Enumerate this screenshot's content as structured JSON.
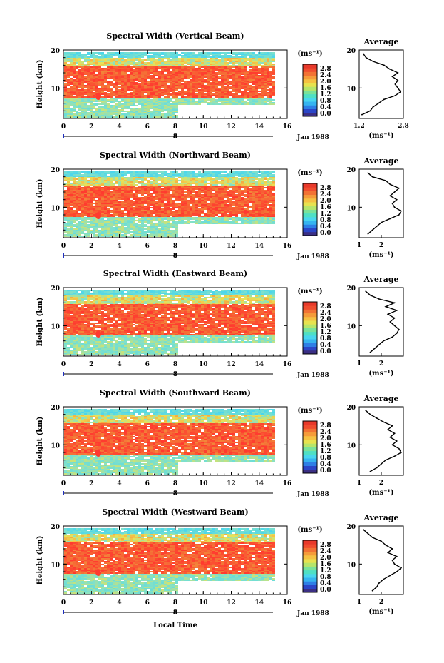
{
  "figure": {
    "xlabel": "Local Time",
    "date_label": "Jan 1988",
    "height_label": "Height (km)",
    "cbar_unit": "(ms⁻¹)",
    "profile_title": "Average",
    "profile_unit": "(ms⁻¹)",
    "colors": {
      "high": "#ff3b2f",
      "mid": "#f5d24a",
      "low": "#49d6ee",
      "bottom": "#3b2f84"
    }
  },
  "panels": [
    {
      "title": "Spectral Width (Vertical Beam)"
    },
    {
      "title": "Spectral Width (Northward Beam)"
    },
    {
      "title": "Spectral Width (Eastward Beam)"
    },
    {
      "title": "Spectral Width (Southward Beam)"
    },
    {
      "title": "Spectral Width (Westward Beam)"
    }
  ],
  "chart_data": [
    {
      "type": "heatmap",
      "title": "Spectral Width (Vertical Beam)",
      "xlabel": "Local Time",
      "ylabel": "Height (km)",
      "xlim": [
        0,
        16
      ],
      "ylim": [
        2,
        20
      ],
      "xticks": [
        0,
        2,
        4,
        6,
        8,
        10,
        12,
        14,
        16
      ],
      "xtick_labels": [
        "0",
        "2",
        "4",
        "6",
        "8",
        "10",
        "12",
        "14",
        "16"
      ],
      "yticks": [
        10,
        20
      ],
      "ytick_labels": [
        "10",
        "20"
      ],
      "date_marker": {
        "value": 8,
        "label": "8",
        "suffix": "Jan 1988"
      },
      "colorbar": {
        "unit": "(ms⁻¹)",
        "ticks": [
          0.0,
          0.4,
          0.8,
          1.2,
          1.6,
          2.0,
          2.4,
          2.8
        ],
        "tick_labels": [
          "0.0",
          "0.4",
          "0.8",
          "1.2",
          "1.6",
          "2.0",
          "2.4",
          "2.8"
        ]
      },
      "average_profile": {
        "title": "Average",
        "xlabel": "(ms⁻¹)",
        "xlim": [
          1.2,
          2.8
        ],
        "xticks": [
          1.2,
          2.8
        ],
        "xtick_labels": [
          "1.2",
          "2.8"
        ],
        "ylim": [
          2,
          20
        ],
        "yticks": [
          10,
          20
        ],
        "ytick_labels": [
          "10",
          "20"
        ],
        "heights": [
          3,
          4,
          5,
          6,
          7,
          8,
          9,
          10,
          11,
          12,
          13,
          14,
          15,
          16,
          17,
          18,
          19
        ],
        "values": [
          1.3,
          1.6,
          1.7,
          1.9,
          2.1,
          2.5,
          2.7,
          2.6,
          2.5,
          2.6,
          2.4,
          2.6,
          2.3,
          2.1,
          1.7,
          1.45,
          1.35
        ]
      }
    },
    {
      "type": "heatmap",
      "title": "Spectral Width (Northward Beam)",
      "xlabel": "Local Time",
      "ylabel": "Height (km)",
      "xlim": [
        0,
        16
      ],
      "ylim": [
        2,
        20
      ],
      "xticks": [
        0,
        2,
        4,
        6,
        8,
        10,
        12,
        14,
        16
      ],
      "xtick_labels": [
        "0",
        "2",
        "4",
        "6",
        "8",
        "10",
        "12",
        "14",
        "16"
      ],
      "yticks": [
        10,
        20
      ],
      "ytick_labels": [
        "10",
        "20"
      ],
      "date_marker": {
        "value": 8,
        "label": "8",
        "suffix": "Jan 1988"
      },
      "colorbar": {
        "unit": "(ms⁻¹)",
        "ticks": [
          0.0,
          0.4,
          0.8,
          1.2,
          1.6,
          2.0,
          2.4,
          2.8
        ],
        "tick_labels": [
          "0.0",
          "0.4",
          "0.8",
          "1.2",
          "1.6",
          "2.0",
          "2.4",
          "2.8"
        ]
      },
      "average_profile": {
        "title": "Average",
        "xlabel": "(ms⁻¹)",
        "xlim": [
          1,
          3
        ],
        "xticks": [
          1,
          2
        ],
        "xtick_labels": [
          "1",
          "2"
        ],
        "ylim": [
          2,
          20
        ],
        "yticks": [
          10,
          20
        ],
        "ytick_labels": [
          "10",
          "20"
        ],
        "heights": [
          3,
          4,
          5,
          6,
          7,
          8,
          9,
          10,
          11,
          12,
          13,
          14,
          15,
          16,
          17,
          18,
          19
        ],
        "values": [
          1.4,
          1.6,
          1.8,
          2.0,
          2.4,
          2.8,
          2.9,
          2.6,
          2.5,
          2.7,
          2.4,
          2.6,
          2.8,
          2.4,
          2.2,
          1.6,
          1.4
        ]
      }
    },
    {
      "type": "heatmap",
      "title": "Spectral Width (Eastward Beam)",
      "xlabel": "Local Time",
      "ylabel": "Height (km)",
      "xlim": [
        0,
        16
      ],
      "ylim": [
        2,
        20
      ],
      "xticks": [
        0,
        2,
        4,
        6,
        8,
        10,
        12,
        14,
        16
      ],
      "xtick_labels": [
        "0",
        "2",
        "4",
        "6",
        "8",
        "10",
        "12",
        "14",
        "16"
      ],
      "yticks": [
        10,
        20
      ],
      "ytick_labels": [
        "10",
        "20"
      ],
      "date_marker": {
        "value": 8,
        "label": "8",
        "suffix": "Jan 1988"
      },
      "colorbar": {
        "unit": "(ms⁻¹)",
        "ticks": [
          0.0,
          0.4,
          0.8,
          1.2,
          1.6,
          2.0,
          2.4,
          2.8
        ],
        "tick_labels": [
          "0.0",
          "0.4",
          "0.8",
          "1.2",
          "1.6",
          "2.0",
          "2.4",
          "2.8"
        ]
      },
      "average_profile": {
        "title": "Average",
        "xlabel": "(ms⁻¹)",
        "xlim": [
          1,
          3
        ],
        "xticks": [
          1,
          2
        ],
        "xtick_labels": [
          "1",
          "2"
        ],
        "ylim": [
          2,
          20
        ],
        "yticks": [
          10,
          20
        ],
        "ytick_labels": [
          "10",
          "20"
        ],
        "heights": [
          3,
          4,
          5,
          6,
          7,
          8,
          9,
          10,
          11,
          12,
          13,
          14,
          15,
          16,
          17,
          18,
          19
        ],
        "values": [
          1.5,
          1.7,
          1.9,
          2.1,
          2.5,
          2.7,
          2.8,
          2.6,
          2.4,
          2.6,
          2.3,
          2.7,
          2.2,
          2.6,
          1.9,
          1.5,
          1.3
        ]
      }
    },
    {
      "type": "heatmap",
      "title": "Spectral Width (Southward Beam)",
      "xlabel": "Local Time",
      "ylabel": "Height (km)",
      "xlim": [
        0,
        16
      ],
      "ylim": [
        2,
        20
      ],
      "xticks": [
        0,
        2,
        4,
        6,
        8,
        10,
        12,
        14,
        16
      ],
      "xtick_labels": [
        "0",
        "2",
        "4",
        "6",
        "8",
        "10",
        "12",
        "14",
        "16"
      ],
      "yticks": [
        10,
        20
      ],
      "ytick_labels": [
        "10",
        "20"
      ],
      "date_marker": {
        "value": 8,
        "label": "8",
        "suffix": "Jan 1988"
      },
      "colorbar": {
        "unit": "(ms⁻¹)",
        "ticks": [
          0.0,
          0.4,
          0.8,
          1.2,
          1.6,
          2.0,
          2.4,
          2.8
        ],
        "tick_labels": [
          "0.0",
          "0.4",
          "0.8",
          "1.2",
          "1.6",
          "2.0",
          "2.4",
          "2.8"
        ]
      },
      "average_profile": {
        "title": "Average",
        "xlabel": "(ms⁻¹)",
        "xlim": [
          1,
          3
        ],
        "xticks": [
          1,
          2
        ],
        "xtick_labels": [
          "1",
          "2"
        ],
        "ylim": [
          2,
          20
        ],
        "yticks": [
          10,
          20
        ],
        "ytick_labels": [
          "10",
          "20"
        ],
        "heights": [
          3,
          4,
          5,
          6,
          7,
          8,
          9,
          10,
          11,
          12,
          13,
          14,
          15,
          16,
          17,
          18,
          19
        ],
        "values": [
          1.5,
          1.8,
          2.0,
          2.2,
          2.6,
          2.9,
          2.8,
          2.5,
          2.7,
          2.4,
          2.6,
          2.3,
          2.5,
          2.1,
          1.8,
          1.5,
          1.3
        ]
      }
    },
    {
      "type": "heatmap",
      "title": "Spectral Width (Westward Beam)",
      "xlabel": "Local Time",
      "ylabel": "Height (km)",
      "xlim": [
        0,
        16
      ],
      "ylim": [
        2,
        20
      ],
      "xticks": [
        0,
        2,
        4,
        6,
        8,
        10,
        12,
        14,
        16
      ],
      "xtick_labels": [
        "0",
        "2",
        "4",
        "6",
        "8",
        "10",
        "12",
        "14",
        "16"
      ],
      "yticks": [
        10,
        20
      ],
      "ytick_labels": [
        "10",
        "20"
      ],
      "date_marker": {
        "value": 8,
        "label": "8",
        "suffix": "Jan 1988"
      },
      "colorbar": {
        "unit": "(ms⁻¹)",
        "ticks": [
          0.0,
          0.4,
          0.8,
          1.2,
          1.6,
          2.0,
          2.4,
          2.8
        ],
        "tick_labels": [
          "0.0",
          "0.4",
          "0.8",
          "1.2",
          "1.6",
          "2.0",
          "2.4",
          "2.8"
        ]
      },
      "average_profile": {
        "title": "Average",
        "xlabel": "(ms⁻¹)",
        "xlim": [
          1,
          3
        ],
        "xticks": [
          1,
          2
        ],
        "xtick_labels": [
          "1",
          "2"
        ],
        "ylim": [
          2,
          20
        ],
        "yticks": [
          10,
          20
        ],
        "ytick_labels": [
          "10",
          "20"
        ],
        "heights": [
          3,
          4,
          5,
          6,
          7,
          8,
          9,
          10,
          11,
          12,
          13,
          14,
          15,
          16,
          17,
          18,
          19
        ],
        "values": [
          1.6,
          1.8,
          1.9,
          2.1,
          2.4,
          2.7,
          2.9,
          2.6,
          2.5,
          2.7,
          2.3,
          2.5,
          2.2,
          2.0,
          1.6,
          1.4,
          1.2
        ]
      }
    }
  ]
}
